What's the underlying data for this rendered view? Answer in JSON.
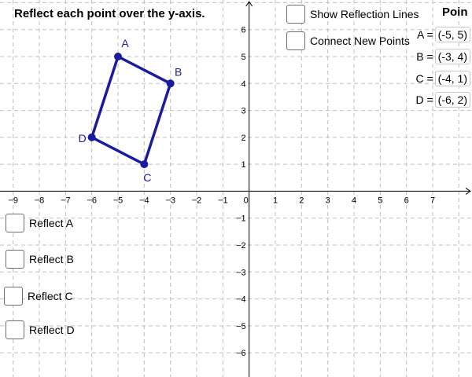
{
  "instruction": "Reflect each point over the y-axis.",
  "panel_title": "Poin",
  "toggles": [
    {
      "label": "Show Reflection Lines",
      "checked": false
    },
    {
      "label": "Connect New Points",
      "checked": false
    }
  ],
  "reflect_checkboxes": [
    {
      "label": "Reflect A",
      "checked": false
    },
    {
      "label": "Reflect B",
      "checked": false
    },
    {
      "label": "Reflect C",
      "checked": false
    },
    {
      "label": "Reflect D",
      "checked": false
    }
  ],
  "coordinates": [
    {
      "label": "A =",
      "value": "(-5, 5)"
    },
    {
      "label": "B =",
      "value": "(-3, 4)"
    },
    {
      "label": "C =",
      "value": "(-4, 1)"
    },
    {
      "label": "D =",
      "value": "(-6, 2)"
    }
  ],
  "chart_data": {
    "type": "scatter",
    "x_range": [
      -9.5,
      8.5
    ],
    "y_range": [
      -6.9,
      7.1
    ],
    "grid": true,
    "x_ticks": [
      -9,
      -8,
      -7,
      -6,
      -5,
      -4,
      -3,
      -2,
      -1,
      0,
      1,
      2,
      3,
      4,
      5,
      6,
      7
    ],
    "y_ticks": [
      -6,
      -5,
      -4,
      -3,
      -2,
      -1,
      1,
      2,
      3,
      4,
      5,
      6
    ],
    "points": [
      {
        "name": "A",
        "x": -5,
        "y": 5
      },
      {
        "name": "B",
        "x": -3,
        "y": 4
      },
      {
        "name": "C",
        "x": -4,
        "y": 1
      },
      {
        "name": "D",
        "x": -6,
        "y": 2
      }
    ],
    "polygon": [
      "A",
      "B",
      "C",
      "D"
    ],
    "colors": {
      "shape": "#1b1b9e",
      "grid": "#c0c0c0",
      "axis": "#000000"
    }
  }
}
